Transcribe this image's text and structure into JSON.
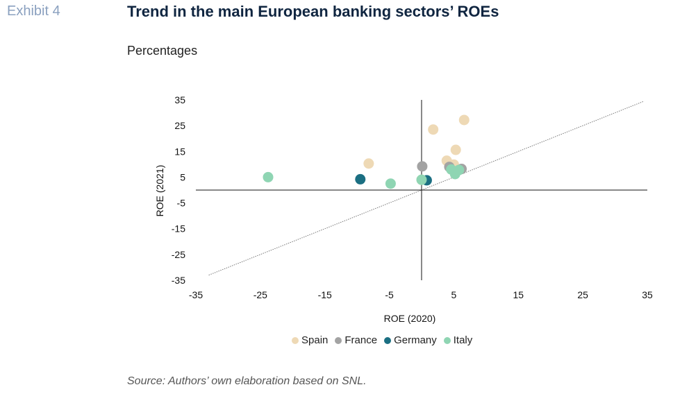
{
  "header": {
    "exhibit": "Exhibit 4",
    "title": "Trend in the main European banking sectors’ ROEs",
    "subtitle": "Percentages"
  },
  "source": "Source: Authors’ own elaboration based on SNL.",
  "chart_data": {
    "type": "scatter",
    "xlabel": "ROE (2020)",
    "ylabel": "ROE (2021)",
    "xlim": [
      -35,
      35
    ],
    "ylim": [
      -35,
      35
    ],
    "xticks": [
      -35,
      -25,
      -15,
      -5,
      5,
      15,
      25,
      35
    ],
    "yticks": [
      35,
      25,
      15,
      5,
      -5,
      -15,
      -25,
      -35
    ],
    "reference_line": "y = x (dotted)",
    "legend_position": "bottom",
    "grid": false,
    "series": [
      {
        "name": "Spain",
        "color": "#eed9b5",
        "points": [
          [
            1.8,
            23.5
          ],
          [
            6.6,
            27.2
          ],
          [
            -8.2,
            10.3
          ],
          [
            5.3,
            15.6
          ],
          [
            3.9,
            11.4
          ],
          [
            5.0,
            9.9
          ],
          [
            0.0,
            4.0
          ]
        ]
      },
      {
        "name": "France",
        "color": "#a3a3a3",
        "points": [
          [
            0.1,
            9.2
          ],
          [
            4.3,
            9.0
          ],
          [
            6.2,
            8.2
          ]
        ]
      },
      {
        "name": "Germany",
        "color": "#1b6f82",
        "points": [
          [
            -9.5,
            4.2
          ],
          [
            0.8,
            3.8
          ]
        ]
      },
      {
        "name": "Italy",
        "color": "#8fd5b3",
        "points": [
          [
            -23.8,
            5.0
          ],
          [
            -4.8,
            2.5
          ],
          [
            0.0,
            4.0
          ],
          [
            4.6,
            8.0
          ],
          [
            5.2,
            6.2
          ],
          [
            5.8,
            7.8
          ]
        ]
      }
    ]
  }
}
